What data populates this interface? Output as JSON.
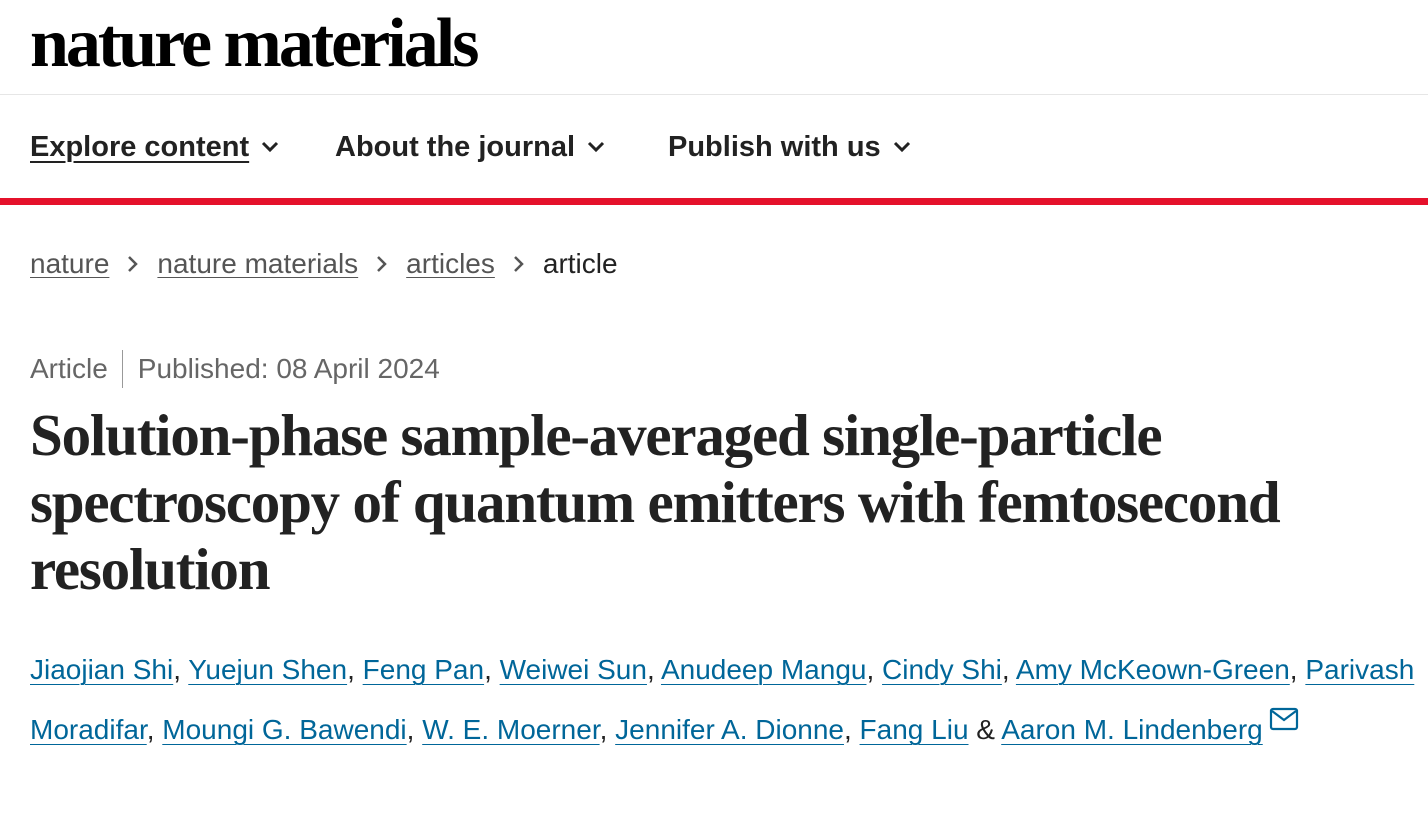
{
  "header": {
    "logo_text": "nature materials"
  },
  "nav": {
    "items": [
      {
        "label": "Explore content",
        "active": true
      },
      {
        "label": "About the journal",
        "active": false
      },
      {
        "label": "Publish with us",
        "active": false
      }
    ]
  },
  "breadcrumb": {
    "items": [
      "nature",
      "nature materials",
      "articles"
    ],
    "current": "article"
  },
  "article": {
    "type": "Article",
    "published": "Published: 08 April 2024",
    "title": "Solution-phase sample-averaged single-particle spectroscopy of quantum emitters with femtosecond resolution",
    "authors": [
      "Jiaojian Shi",
      "Yuejun Shen",
      "Feng Pan",
      "Weiwei Sun",
      "Anudeep Mangu",
      "Cindy Shi",
      "Amy McKeown-Green",
      "Parivash Moradifar",
      "Moungi G. Bawendi",
      "W. E. Moerner",
      "Jennifer A. Dionne",
      "Fang Liu",
      "Aaron M. Lindenberg"
    ],
    "author_separator": ", ",
    "author_last_separator": " & ",
    "contact_icon": "mail-icon"
  },
  "colors": {
    "accent_bar": "#e5112b",
    "link": "#006699",
    "text": "#222222",
    "muted": "#666666"
  }
}
